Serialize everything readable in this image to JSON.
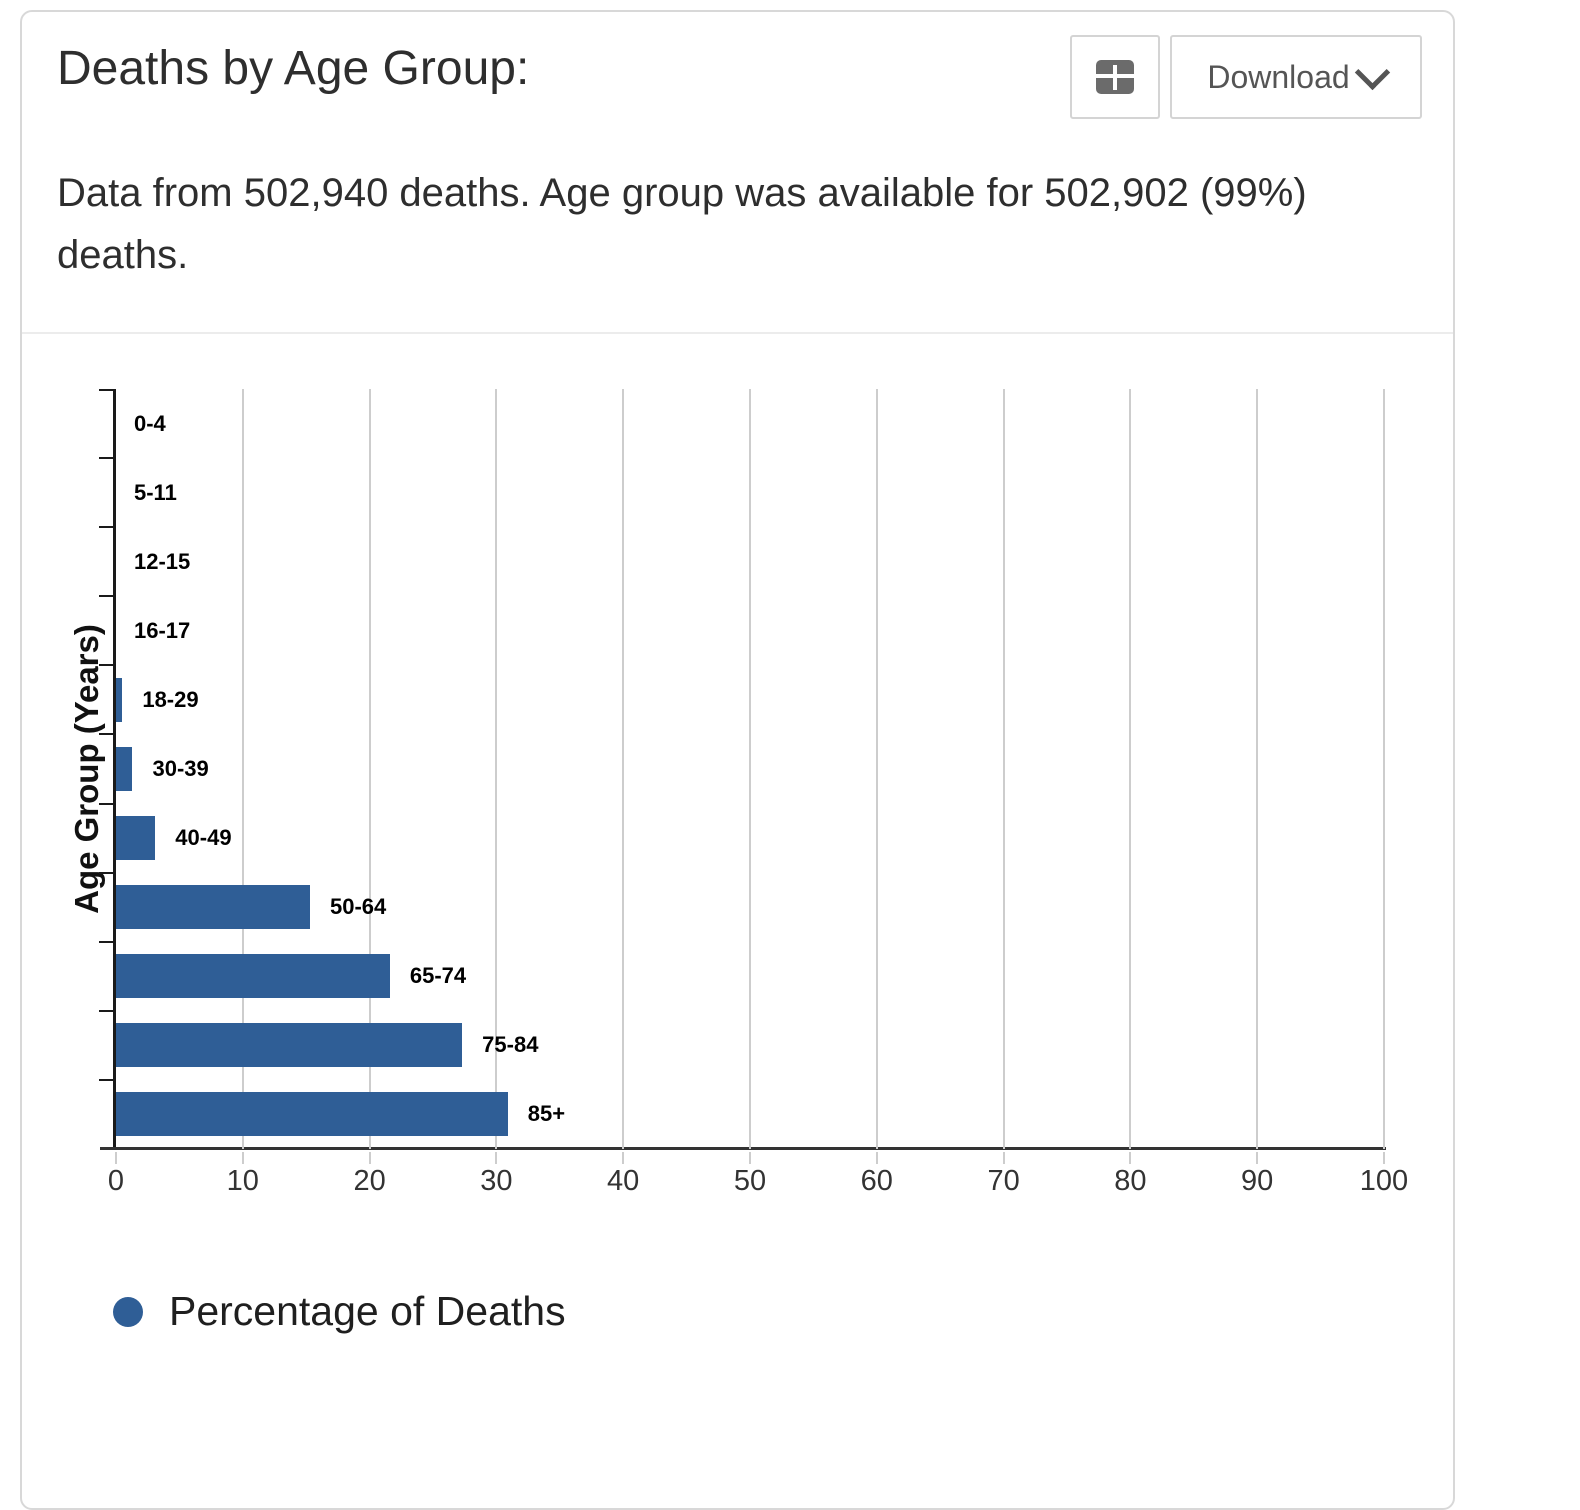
{
  "card": {
    "title": "Deaths by Age Group:",
    "subtitle_lines": [
      "Data from 502,940 deaths. Age group was available for 502,902 (99%)",
      "deaths."
    ],
    "subtitle_full": "Data from 502,940 deaths. Age group was available for 502,902 (99%) deaths."
  },
  "toolbar": {
    "table_view_icon": "table-icon",
    "download_label": "Download",
    "download_chevron_icon": "chevron-down-icon"
  },
  "chart_data": {
    "type": "bar",
    "orientation": "horizontal",
    "title": "Deaths by Age Group",
    "ylabel": "Age Group (Years)",
    "xlabel": "",
    "categories": [
      "0-4",
      "5-11",
      "12-15",
      "16-17",
      "18-29",
      "30-39",
      "40-49",
      "50-64",
      "65-74",
      "75-84",
      "85+"
    ],
    "values": [
      0,
      0,
      0,
      0,
      0.5,
      1.3,
      3.1,
      15.3,
      21.6,
      27.3,
      30.9
    ],
    "series_name": "Percentage of Deaths",
    "xlim": [
      0,
      100
    ],
    "x_ticks": [
      0,
      10,
      20,
      30,
      40,
      50,
      60,
      70,
      80,
      90,
      100
    ],
    "grid": true,
    "legend_position": "bottom",
    "bar_color": "#2F5E96",
    "grid_color": "#cdcdcd",
    "axis_color": "#333333"
  },
  "legend": {
    "label": "Percentage of Deaths",
    "marker_color": "#2F5E96"
  }
}
